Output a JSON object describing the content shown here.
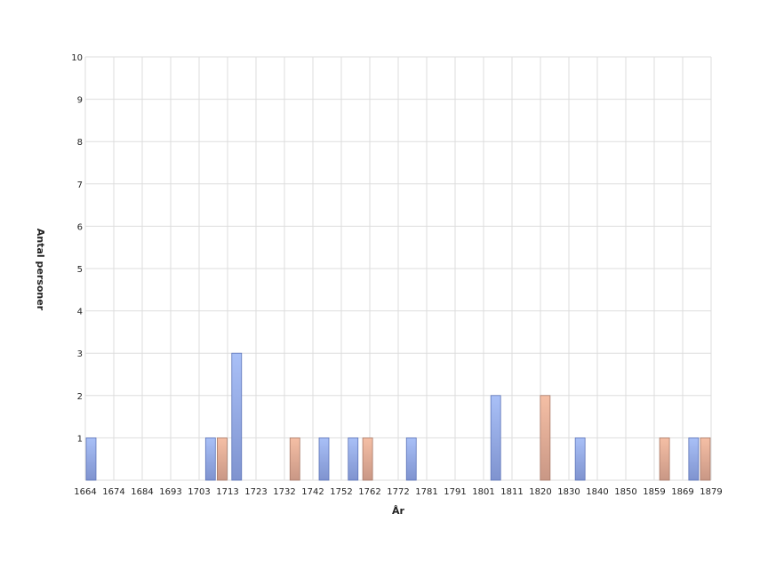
{
  "chart_data": {
    "type": "bar",
    "xlabel": "År",
    "ylabel": "Antal personer",
    "ylim": [
      0,
      10
    ],
    "yticks": [
      1,
      2,
      3,
      4,
      5,
      6,
      7,
      8,
      9,
      10
    ],
    "xlim": [
      1664,
      1879
    ],
    "xticks": [
      1664,
      1674,
      1684,
      1693,
      1703,
      1713,
      1723,
      1732,
      1742,
      1752,
      1762,
      1772,
      1781,
      1791,
      1801,
      1811,
      1820,
      1830,
      1840,
      1850,
      1859,
      1869,
      1879
    ],
    "grid": true,
    "legend": "none",
    "colors": {
      "series_1": "#8fa8e8",
      "series_2": "#e8a98c",
      "grid": "#dddddd"
    },
    "series": [
      {
        "color_key": "series_1",
        "points": [
          {
            "x": 1664,
            "y": 1
          },
          {
            "x": 1707,
            "y": 1
          },
          {
            "x": 1716,
            "y": 3
          },
          {
            "x": 1746,
            "y": 1
          },
          {
            "x": 1756,
            "y": 1
          },
          {
            "x": 1776,
            "y": 1
          },
          {
            "x": 1805,
            "y": 2
          },
          {
            "x": 1834,
            "y": 1
          },
          {
            "x": 1873,
            "y": 1
          }
        ]
      },
      {
        "color_key": "series_2",
        "points": [
          {
            "x": 1711,
            "y": 1
          },
          {
            "x": 1736,
            "y": 1
          },
          {
            "x": 1761,
            "y": 1
          },
          {
            "x": 1822,
            "y": 2
          },
          {
            "x": 1863,
            "y": 1
          },
          {
            "x": 1877,
            "y": 1
          }
        ]
      }
    ]
  }
}
